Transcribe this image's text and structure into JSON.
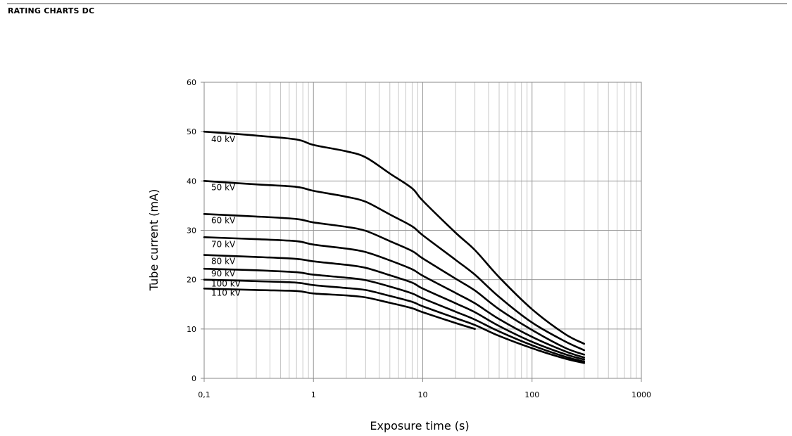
{
  "page": {
    "heading": "RATING CHARTS DC"
  },
  "chart_data": {
    "type": "line",
    "xlabel": "Exposure time (s)",
    "ylabel": "Tube current (mA)",
    "xscale": "log",
    "xlim": [
      0.1,
      1000
    ],
    "ylim": [
      0,
      60
    ],
    "grid": true,
    "legend": "inline labels at left end of each curve",
    "x_tick_labels": [
      "0,1",
      "1",
      "10",
      "100",
      "1000"
    ],
    "y_tick_labels": [
      "0",
      "10",
      "20",
      "30",
      "40",
      "50",
      "60"
    ],
    "line_color": "#000000",
    "series": [
      {
        "name": "40 kV",
        "points": [
          [
            0.1,
            50
          ],
          [
            0.3,
            49.2
          ],
          [
            0.7,
            48.4
          ],
          [
            1,
            47.3
          ],
          [
            2,
            46
          ],
          [
            3,
            44.8
          ],
          [
            5,
            41.5
          ],
          [
            8,
            38.5
          ],
          [
            10,
            36
          ],
          [
            20,
            29.5
          ],
          [
            30,
            26
          ],
          [
            50,
            20.5
          ],
          [
            100,
            14
          ],
          [
            200,
            9
          ],
          [
            300,
            7
          ]
        ]
      },
      {
        "name": "50 kV",
        "points": [
          [
            0.1,
            40
          ],
          [
            0.3,
            39.3
          ],
          [
            0.7,
            38.8
          ],
          [
            1,
            38
          ],
          [
            2,
            36.8
          ],
          [
            3,
            35.8
          ],
          [
            5,
            33.2
          ],
          [
            8,
            30.8
          ],
          [
            10,
            29
          ],
          [
            20,
            24
          ],
          [
            30,
            21
          ],
          [
            50,
            16.5
          ],
          [
            100,
            11.3
          ],
          [
            200,
            7.5
          ],
          [
            300,
            5.7
          ]
        ]
      },
      {
        "name": "60 kV",
        "points": [
          [
            0.1,
            33.3
          ],
          [
            0.3,
            32.8
          ],
          [
            0.7,
            32.3
          ],
          [
            1,
            31.6
          ],
          [
            2,
            30.7
          ],
          [
            3,
            29.9
          ],
          [
            5,
            27.8
          ],
          [
            8,
            25.8
          ],
          [
            10,
            24.3
          ],
          [
            20,
            20.2
          ],
          [
            30,
            17.8
          ],
          [
            50,
            14
          ],
          [
            100,
            9.8
          ],
          [
            200,
            6.2
          ],
          [
            300,
            4.8
          ]
        ]
      },
      {
        "name": "70 kV",
        "points": [
          [
            0.1,
            28.6
          ],
          [
            0.3,
            28.2
          ],
          [
            0.7,
            27.8
          ],
          [
            1,
            27.1
          ],
          [
            2,
            26.3
          ],
          [
            3,
            25.6
          ],
          [
            5,
            23.9
          ],
          [
            8,
            22.1
          ],
          [
            10,
            20.8
          ],
          [
            20,
            17.3
          ],
          [
            30,
            15.2
          ],
          [
            50,
            12
          ],
          [
            100,
            8.4
          ],
          [
            200,
            5.5
          ],
          [
            300,
            4.2
          ]
        ]
      },
      {
        "name": "80 kV",
        "points": [
          [
            0.1,
            25
          ],
          [
            0.3,
            24.6
          ],
          [
            0.7,
            24.2
          ],
          [
            1,
            23.7
          ],
          [
            2,
            23
          ],
          [
            3,
            22.4
          ],
          [
            5,
            20.9
          ],
          [
            8,
            19.4
          ],
          [
            10,
            18.2
          ],
          [
            20,
            15.2
          ],
          [
            30,
            13.4
          ],
          [
            50,
            10.6
          ],
          [
            100,
            7.4
          ],
          [
            200,
            4.9
          ],
          [
            300,
            3.8
          ]
        ]
      },
      {
        "name": "90 kV",
        "points": [
          [
            0.1,
            22.2
          ],
          [
            0.3,
            21.9
          ],
          [
            0.7,
            21.5
          ],
          [
            1,
            21
          ],
          [
            2,
            20.4
          ],
          [
            3,
            19.9
          ],
          [
            5,
            18.6
          ],
          [
            8,
            17.2
          ],
          [
            10,
            16.2
          ],
          [
            20,
            13.5
          ],
          [
            30,
            11.9
          ],
          [
            50,
            9.5
          ],
          [
            100,
            6.7
          ],
          [
            200,
            4.4
          ],
          [
            300,
            3.4
          ]
        ]
      },
      {
        "name": "100 kV",
        "points": [
          [
            0.1,
            20
          ],
          [
            0.3,
            19.7
          ],
          [
            0.7,
            19.4
          ],
          [
            1,
            18.9
          ],
          [
            2,
            18.3
          ],
          [
            3,
            17.9
          ],
          [
            5,
            16.7
          ],
          [
            8,
            15.5
          ],
          [
            10,
            14.6
          ],
          [
            20,
            12.2
          ],
          [
            30,
            10.8
          ],
          [
            50,
            8.6
          ],
          [
            100,
            6.1
          ],
          [
            200,
            4
          ],
          [
            300,
            3.1
          ]
        ]
      },
      {
        "name": "110 kV",
        "points": [
          [
            0.1,
            18.2
          ],
          [
            0.3,
            17.9
          ],
          [
            0.7,
            17.7
          ],
          [
            1,
            17.2
          ],
          [
            2,
            16.8
          ],
          [
            3,
            16.4
          ],
          [
            5,
            15.3
          ],
          [
            8,
            14.2
          ],
          [
            10,
            13.4
          ],
          [
            20,
            11.2
          ],
          [
            30,
            10
          ]
        ]
      }
    ]
  }
}
